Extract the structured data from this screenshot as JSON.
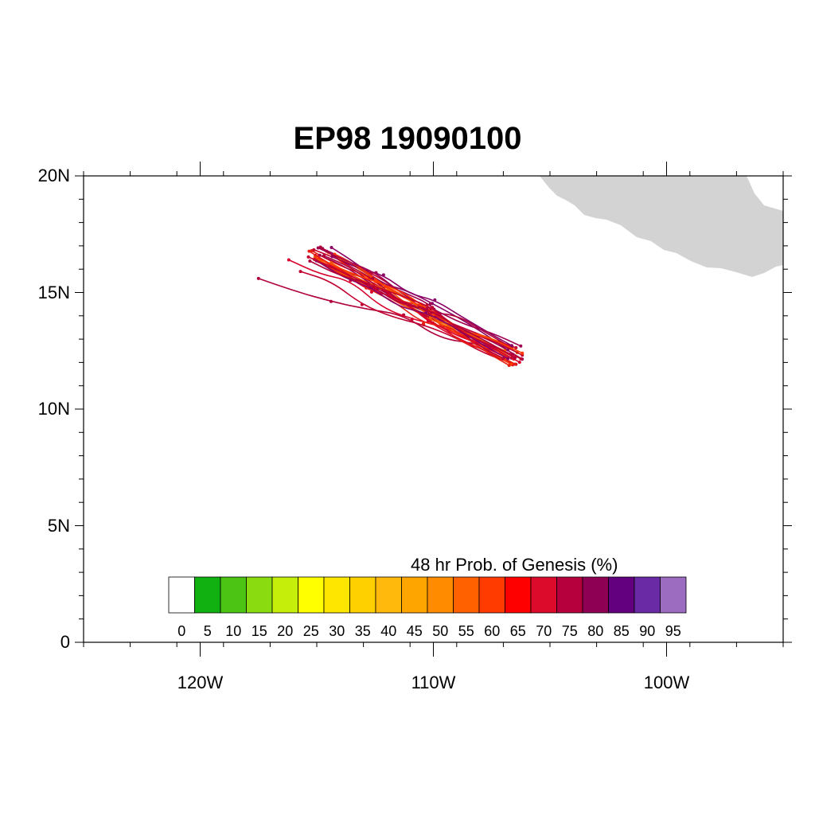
{
  "title": "EP98 19090100",
  "axes": {
    "y_ticks": [
      {
        "value": 0,
        "label": "0"
      },
      {
        "value": 5,
        "label": "5N"
      },
      {
        "value": 10,
        "label": "10N"
      },
      {
        "value": 15,
        "label": "15N"
      },
      {
        "value": 20,
        "label": "20N"
      }
    ],
    "x_ticks": [
      {
        "value": -120,
        "label": "120W"
      },
      {
        "value": -110,
        "label": "110W"
      },
      {
        "value": -100,
        "label": "100W"
      }
    ],
    "lon_range": [
      -125,
      -95
    ],
    "lat_range": [
      0,
      20
    ]
  },
  "colorbar": {
    "title": "48 hr Prob. of Genesis (%)",
    "labels": [
      "0",
      "5",
      "10",
      "15",
      "20",
      "25",
      "30",
      "35",
      "40",
      "45",
      "50",
      "55",
      "60",
      "65",
      "70",
      "75",
      "80",
      "85",
      "90",
      "95"
    ],
    "colors": [
      "#ffffff",
      "#12b112",
      "#4cc414",
      "#8adb10",
      "#c5ee0a",
      "#ffff00",
      "#ffe600",
      "#ffd000",
      "#ffb90d",
      "#ffa500",
      "#ff8c00",
      "#ff6000",
      "#ff3b00",
      "#ff0000",
      "#dc0a2b",
      "#b6003d",
      "#8e0054",
      "#630080",
      "#6b2aa5",
      "#9c6cc0"
    ]
  },
  "land_color": "#d3d3d3",
  "track_colors": [
    "#b0003a",
    "#c10030",
    "#d8002a",
    "#e62012",
    "#f25a00",
    "#a0004f",
    "#8a0064",
    "#ff3b00"
  ]
}
